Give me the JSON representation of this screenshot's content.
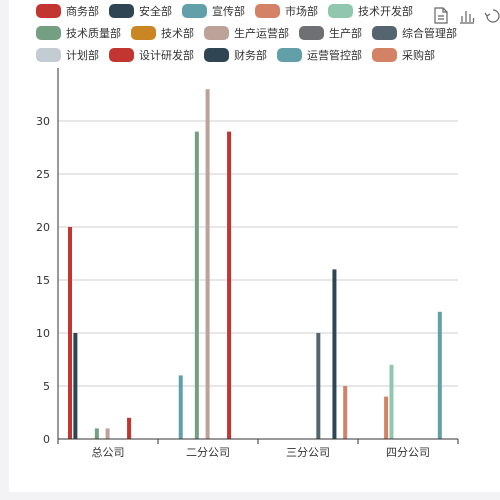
{
  "chart_data": {
    "type": "bar",
    "categories": [
      "总公司",
      "二分公司",
      "三分公司",
      "四分公司"
    ],
    "ylim": [
      0,
      35
    ],
    "yticks": [
      0,
      5,
      10,
      15,
      20,
      25,
      30
    ],
    "grid": true,
    "legend_position": "top",
    "series": [
      {
        "name": "商务部",
        "color": "#c23531",
        "values": [
          20,
          0,
          0,
          0
        ]
      },
      {
        "name": "安全部",
        "color": "#2f4554",
        "values": [
          10,
          0,
          0,
          0
        ]
      },
      {
        "name": "宣传部",
        "color": "#61a0a8",
        "values": [
          0,
          6,
          0,
          0
        ]
      },
      {
        "name": "市场部",
        "color": "#d48265",
        "values": [
          0,
          0,
          0,
          4
        ]
      },
      {
        "name": "技术开发部",
        "color": "#91c7ae",
        "values": [
          0,
          0,
          0,
          7
        ]
      },
      {
        "name": "技术质量部",
        "color": "#749f83",
        "values": [
          1,
          29,
          0,
          0
        ]
      },
      {
        "name": "技术部",
        "color": "#ca8622",
        "values": [
          0,
          0,
          0,
          0
        ]
      },
      {
        "name": "生产运营部",
        "color": "#bda29a",
        "values": [
          1,
          33,
          0,
          0
        ]
      },
      {
        "name": "生产部",
        "color": "#6e7074",
        "values": [
          0,
          0,
          0,
          0
        ]
      },
      {
        "name": "综合管理部",
        "color": "#546570",
        "values": [
          0,
          0,
          10,
          0
        ]
      },
      {
        "name": "计划部",
        "color": "#c4ccd3",
        "values": [
          0,
          0,
          0,
          0
        ]
      },
      {
        "name": "设计研发部",
        "color": "#c23531",
        "values": [
          2,
          29,
          0,
          0
        ]
      },
      {
        "name": "财务部",
        "color": "#2f4554",
        "values": [
          0,
          0,
          16,
          0
        ]
      },
      {
        "name": "运营管控部",
        "color": "#61a0a8",
        "values": [
          0,
          0,
          0,
          12
        ]
      },
      {
        "name": "采购部",
        "color": "#d48265",
        "values": [
          0,
          0,
          5,
          0
        ]
      }
    ]
  },
  "toolbox": {
    "icons": [
      "data-view-icon",
      "bar-chart-icon",
      "restore-icon"
    ]
  }
}
